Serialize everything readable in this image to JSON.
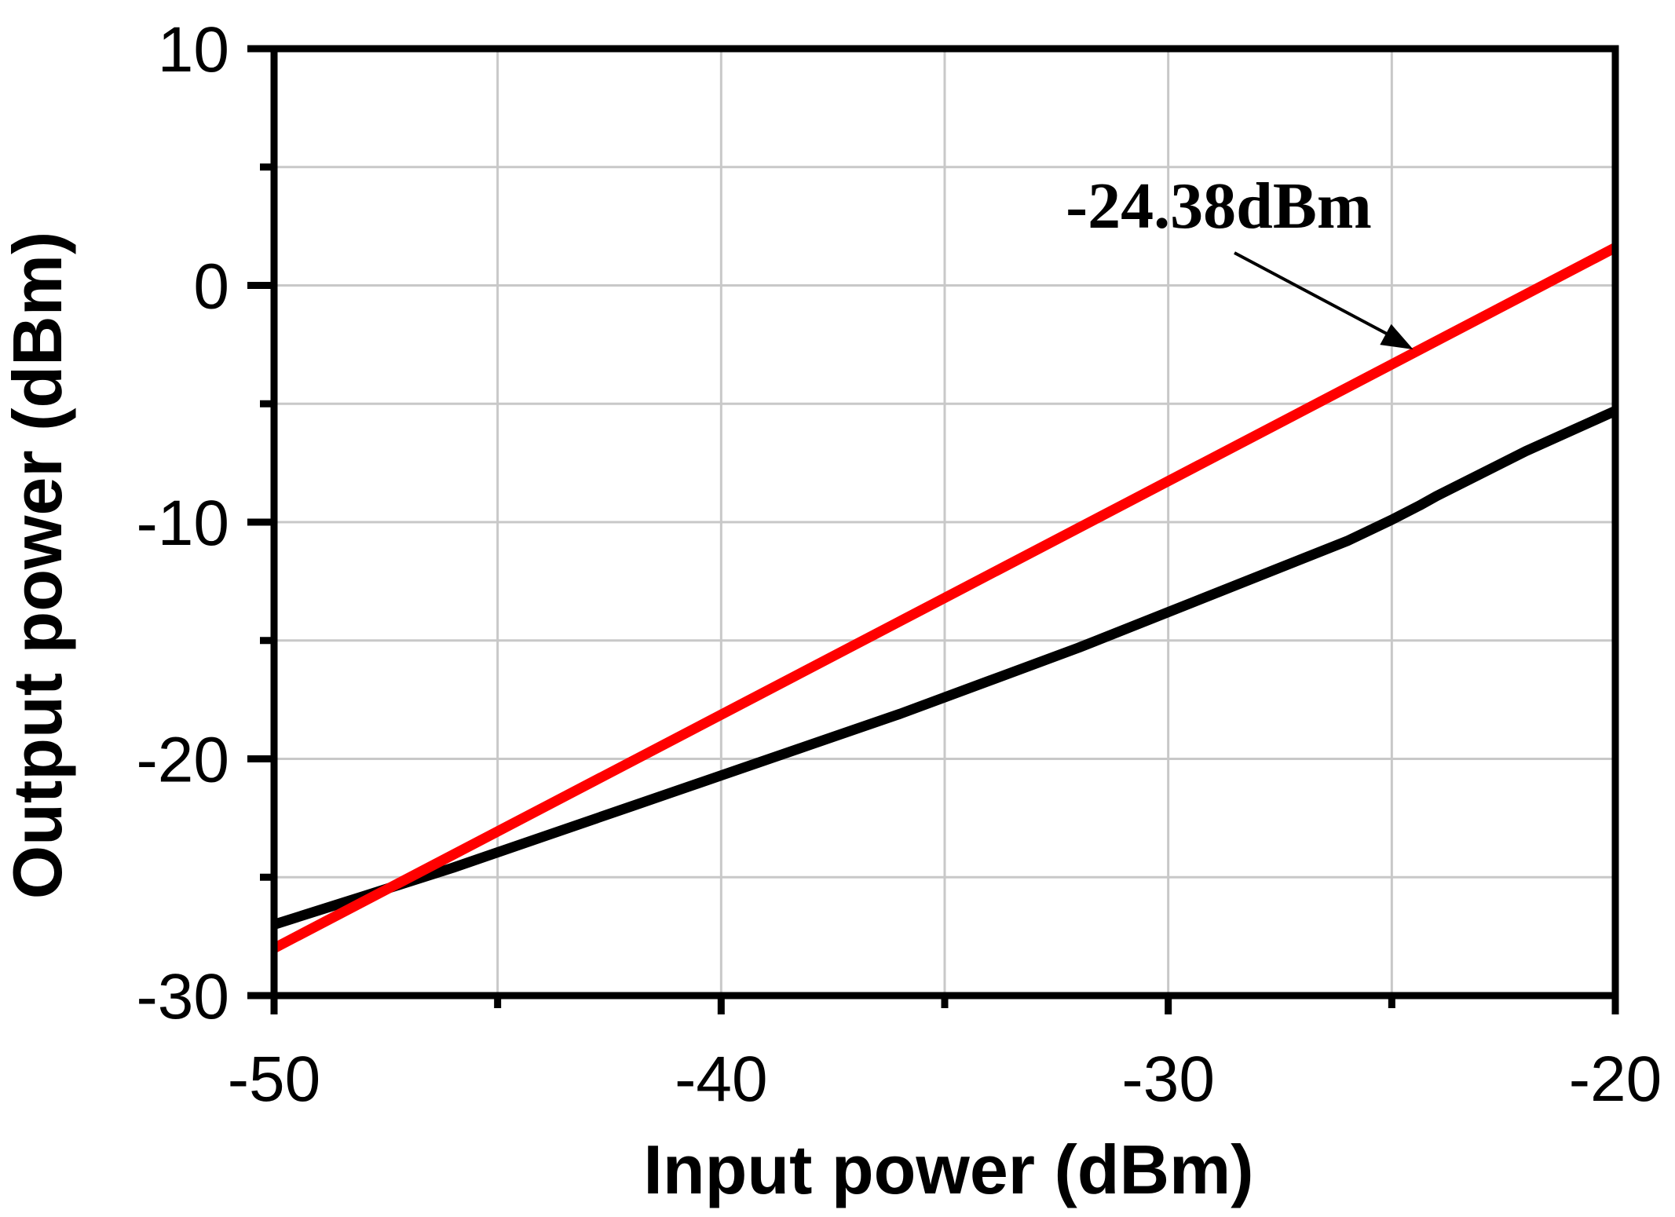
{
  "chart_data": {
    "type": "line",
    "title": "",
    "xlabel": "Input power (dBm)",
    "ylabel": "Output power (dBm)",
    "xlim": [
      -50,
      -20
    ],
    "ylim": [
      -30,
      10
    ],
    "xticks": [
      -50,
      -40,
      -30,
      -20
    ],
    "xtick_labels": [
      "-50",
      "-40",
      "-30",
      "-20"
    ],
    "yticks": [
      -30,
      -20,
      -10,
      0,
      10
    ],
    "ytick_labels": [
      "-30",
      "-20",
      "-10",
      "0",
      "10"
    ],
    "grid": true,
    "series": [
      {
        "color": "#000000",
        "x": [
          -50,
          -48,
          -46,
          -44,
          -42,
          -40,
          -38,
          -36,
          -34,
          -32,
          -30,
          -28,
          -26,
          -25,
          -24.38,
          -24,
          -22,
          -20
        ],
        "y": [
          -27.0,
          -25.8,
          -24.6,
          -23.3,
          -22.0,
          -20.7,
          -19.4,
          -18.1,
          -16.7,
          -15.3,
          -13.8,
          -12.3,
          -10.8,
          -9.9,
          -9.3,
          -8.9,
          -7.0,
          -5.3
        ]
      },
      {
        "color": "#ff0000",
        "x": [
          -50,
          -20
        ],
        "y": [
          -28.0,
          1.6
        ]
      }
    ],
    "annotations": [
      {
        "text": "-24.38dBm",
        "points_to_x": -24.38
      }
    ]
  }
}
